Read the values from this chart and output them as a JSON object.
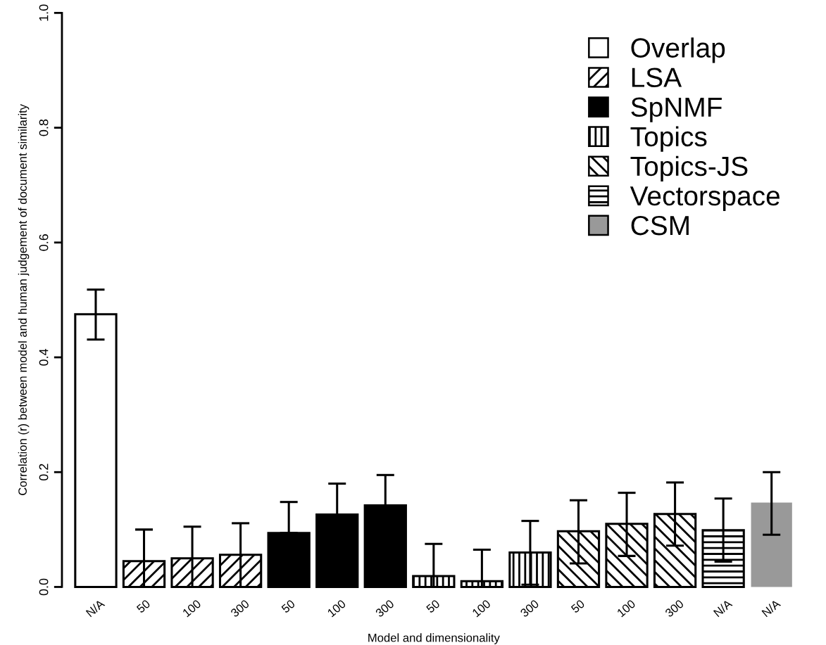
{
  "chart_data": {
    "type": "bar",
    "xlabel": "Model and dimensionality",
    "ylabel": "Correlation (r) between model and human judgement of document similarity",
    "categories": [
      "N/A",
      "50",
      "100",
      "300",
      "50",
      "100",
      "300",
      "50",
      "100",
      "300",
      "50",
      "100",
      "300",
      "N/A",
      "N/A"
    ],
    "series": [
      {
        "name": "Overlap",
        "color": "#ffffff",
        "values": [
          0.475,
          null,
          null,
          null,
          null,
          null,
          null,
          null,
          null,
          null,
          null,
          null,
          null,
          null,
          null
        ],
        "errors": [
          [
            0.431,
            0.518
          ],
          null,
          null,
          null,
          null,
          null,
          null,
          null,
          null,
          null,
          null,
          null,
          null,
          null,
          null
        ]
      },
      {
        "name": "LSA",
        "color": "#000000",
        "values": [
          null,
          0.045,
          0.05,
          0.056,
          null,
          null,
          null,
          null,
          null,
          null,
          null,
          null,
          null,
          null,
          null
        ],
        "errors": [
          null,
          [
            0.0,
            0.1
          ],
          [
            0.0,
            0.105
          ],
          [
            0.0,
            0.111
          ],
          null,
          null,
          null,
          null,
          null,
          null,
          null,
          null,
          null,
          null,
          null
        ]
      },
      {
        "name": "SpNMF",
        "color": "#000000",
        "values": [
          null,
          null,
          null,
          null,
          0.094,
          0.126,
          0.142,
          null,
          null,
          null,
          null,
          null,
          null,
          null,
          null
        ],
        "errors": [
          null,
          null,
          null,
          null,
          [
            0.094,
            0.148
          ],
          [
            0.126,
            0.18
          ],
          [
            0.142,
            0.195
          ],
          null,
          null,
          null,
          null,
          null,
          null,
          null,
          null
        ]
      },
      {
        "name": "Topics",
        "color": "#000000",
        "values": [
          null,
          null,
          null,
          null,
          null,
          null,
          null,
          0.019,
          0.01,
          0.06,
          null,
          null,
          null,
          null,
          null
        ],
        "errors": [
          null,
          null,
          null,
          null,
          null,
          null,
          null,
          [
            0.0,
            0.075
          ],
          [
            0.0,
            0.065
          ],
          [
            0.004,
            0.115
          ],
          null,
          null,
          null,
          null,
          null
        ]
      },
      {
        "name": "Topics-JS",
        "color": "#000000",
        "values": [
          null,
          null,
          null,
          null,
          null,
          null,
          null,
          null,
          null,
          null,
          0.097,
          0.11,
          0.127,
          null,
          null
        ],
        "errors": [
          null,
          null,
          null,
          null,
          null,
          null,
          null,
          null,
          null,
          null,
          [
            0.041,
            0.151
          ],
          [
            0.054,
            0.164
          ],
          [
            0.072,
            0.182
          ],
          null,
          null
        ]
      },
      {
        "name": "Vectorspace",
        "color": "#000000",
        "values": [
          null,
          null,
          null,
          null,
          null,
          null,
          null,
          null,
          null,
          null,
          null,
          null,
          null,
          0.099,
          null
        ],
        "errors": [
          null,
          null,
          null,
          null,
          null,
          null,
          null,
          null,
          null,
          null,
          null,
          null,
          null,
          [
            0.044,
            0.154
          ],
          null
        ]
      },
      {
        "name": "CSM",
        "color": "#999999",
        "values": [
          null,
          null,
          null,
          null,
          null,
          null,
          null,
          null,
          null,
          null,
          null,
          null,
          null,
          null,
          0.147
        ],
        "errors": [
          null,
          null,
          null,
          null,
          null,
          null,
          null,
          null,
          null,
          null,
          null,
          null,
          null,
          null,
          [
            0.091,
            0.2
          ]
        ]
      }
    ],
    "ylim": [
      0,
      1
    ],
    "yticks": [
      {
        "value": 0,
        "label": "0.0"
      },
      {
        "value": 0.2,
        "label": "0.2"
      },
      {
        "value": 0.4,
        "label": "0.4"
      },
      {
        "value": 0.6,
        "label": "0.6"
      },
      {
        "value": 0.8,
        "label": "0.8"
      },
      {
        "value": 1,
        "label": "1.0"
      }
    ],
    "legend": "top right",
    "grid": false
  }
}
